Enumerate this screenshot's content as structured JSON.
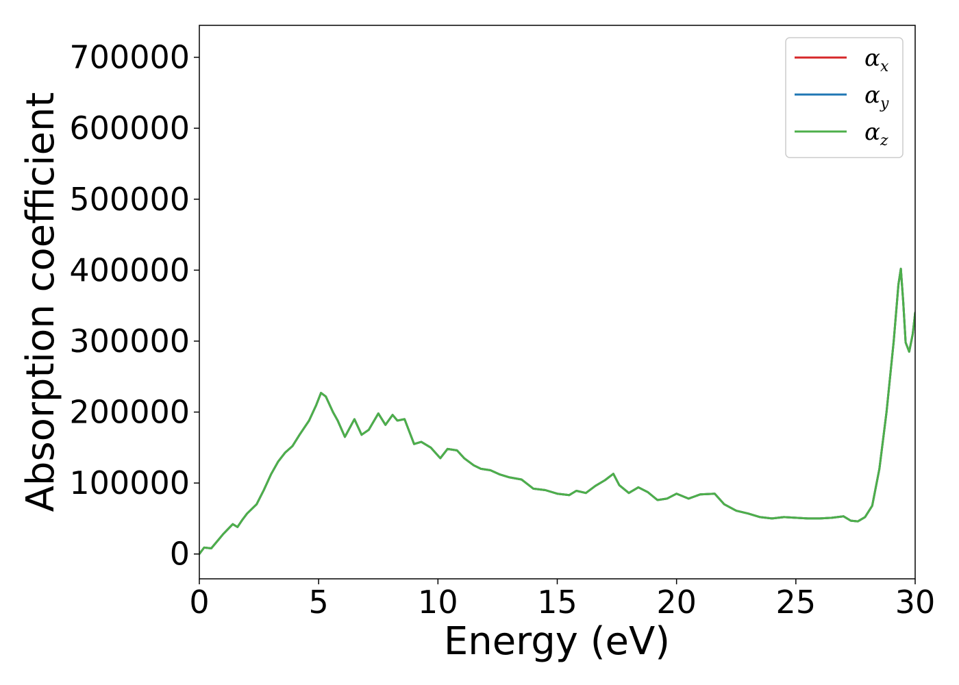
{
  "chart_data": {
    "type": "line",
    "xlabel": "Energy (eV)",
    "ylabel": "Absorption coefficient",
    "xlim": [
      0,
      30
    ],
    "ylim": [
      -35000,
      745000
    ],
    "xticks": [
      0,
      5,
      10,
      15,
      20,
      25,
      30
    ],
    "yticks": [
      0,
      100000,
      200000,
      300000,
      400000,
      500000,
      600000,
      700000
    ],
    "xtick_labels": [
      "0",
      "5",
      "10",
      "15",
      "20",
      "25",
      "30"
    ],
    "ytick_labels": [
      "0",
      "100000",
      "200000",
      "300000",
      "400000",
      "500000",
      "600000",
      "700000"
    ],
    "grid": false,
    "legend_position": "top-right",
    "legend": [
      {
        "symbol": "α",
        "sub": "x",
        "color": "#d62728"
      },
      {
        "symbol": "α",
        "sub": "y",
        "color": "#1f77b4"
      },
      {
        "symbol": "α",
        "sub": "z",
        "color": "#4daf4a"
      }
    ],
    "series_colors": [
      "#d62728",
      "#1f77b4",
      "#4daf4a"
    ],
    "x": [
      0,
      0.2,
      0.5,
      0.8,
      1.0,
      1.4,
      1.6,
      1.8,
      2.0,
      2.4,
      2.7,
      3.0,
      3.3,
      3.6,
      3.9,
      4.2,
      4.6,
      4.9,
      5.1,
      5.3,
      5.6,
      5.8,
      6.1,
      6.5,
      6.8,
      7.1,
      7.5,
      7.8,
      8.1,
      8.3,
      8.6,
      9.0,
      9.3,
      9.7,
      10.1,
      10.4,
      10.8,
      11.1,
      11.5,
      11.8,
      12.2,
      12.6,
      13.0,
      13.5,
      14.0,
      14.5,
      15.0,
      15.5,
      15.8,
      16.2,
      16.6,
      17.0,
      17.35,
      17.6,
      18.0,
      18.4,
      18.8,
      19.2,
      19.6,
      20.0,
      20.5,
      21.0,
      21.6,
      22.0,
      22.5,
      23.0,
      23.5,
      24.0,
      24.5,
      25.0,
      25.5,
      26.0,
      26.5,
      27.0,
      27.3,
      27.6,
      27.9,
      28.2,
      28.5,
      28.8,
      29.1,
      29.3,
      29.4,
      29.5,
      29.6,
      29.75,
      29.9,
      30.0
    ],
    "series": [
      {
        "values": [
          0,
          9000,
          8000,
          20000,
          28000,
          42000,
          38000,
          48000,
          57000,
          70000,
          90000,
          112000,
          130000,
          143000,
          152000,
          168000,
          188000,
          210000,
          227000,
          222000,
          200000,
          188000,
          165000,
          190000,
          168000,
          175000,
          198000,
          182000,
          196000,
          188000,
          190000,
          155000,
          158000,
          150000,
          135000,
          148000,
          146000,
          135000,
          125000,
          120000,
          118000,
          112000,
          108000,
          105000,
          92000,
          90000,
          85000,
          83000,
          89000,
          86000,
          96000,
          104000,
          113000,
          97000,
          86000,
          94000,
          87000,
          76000,
          78000,
          85000,
          78000,
          84000,
          85000,
          70000,
          61000,
          57000,
          52000,
          50000,
          52000,
          51000,
          50000,
          50000,
          51000,
          53000,
          47000,
          46000,
          52000,
          68000,
          120000,
          200000,
          300000,
          380000,
          402000,
          355000,
          298000,
          285000,
          310000,
          340000
        ]
      },
      {
        "values": [
          0,
          9000,
          8000,
          20000,
          28000,
          42000,
          38000,
          48000,
          57000,
          70000,
          90000,
          112000,
          130000,
          143000,
          152000,
          168000,
          188000,
          210000,
          227000,
          222000,
          200000,
          188000,
          165000,
          190000,
          168000,
          175000,
          198000,
          182000,
          196000,
          188000,
          190000,
          155000,
          158000,
          150000,
          135000,
          148000,
          146000,
          135000,
          125000,
          120000,
          118000,
          112000,
          108000,
          105000,
          92000,
          90000,
          85000,
          83000,
          89000,
          86000,
          96000,
          104000,
          113000,
          97000,
          86000,
          94000,
          87000,
          76000,
          78000,
          85000,
          78000,
          84000,
          85000,
          70000,
          61000,
          57000,
          52000,
          50000,
          52000,
          51000,
          50000,
          50000,
          51000,
          53000,
          47000,
          46000,
          52000,
          68000,
          120000,
          200000,
          300000,
          380000,
          402000,
          355000,
          298000,
          285000,
          310000,
          340000
        ]
      },
      {
        "values": [
          0,
          9000,
          8000,
          20000,
          28000,
          42000,
          38000,
          48000,
          57000,
          70000,
          90000,
          112000,
          130000,
          143000,
          152000,
          168000,
          188000,
          210000,
          227000,
          222000,
          200000,
          188000,
          165000,
          190000,
          168000,
          175000,
          198000,
          182000,
          196000,
          188000,
          190000,
          155000,
          158000,
          150000,
          135000,
          148000,
          146000,
          135000,
          125000,
          120000,
          118000,
          112000,
          108000,
          105000,
          92000,
          90000,
          85000,
          83000,
          89000,
          86000,
          96000,
          104000,
          113000,
          97000,
          86000,
          94000,
          87000,
          76000,
          78000,
          85000,
          78000,
          84000,
          85000,
          70000,
          61000,
          57000,
          52000,
          50000,
          52000,
          51000,
          50000,
          50000,
          51000,
          53000,
          47000,
          46000,
          52000,
          68000,
          120000,
          200000,
          300000,
          380000,
          402000,
          355000,
          298000,
          285000,
          310000,
          340000
        ]
      }
    ]
  }
}
